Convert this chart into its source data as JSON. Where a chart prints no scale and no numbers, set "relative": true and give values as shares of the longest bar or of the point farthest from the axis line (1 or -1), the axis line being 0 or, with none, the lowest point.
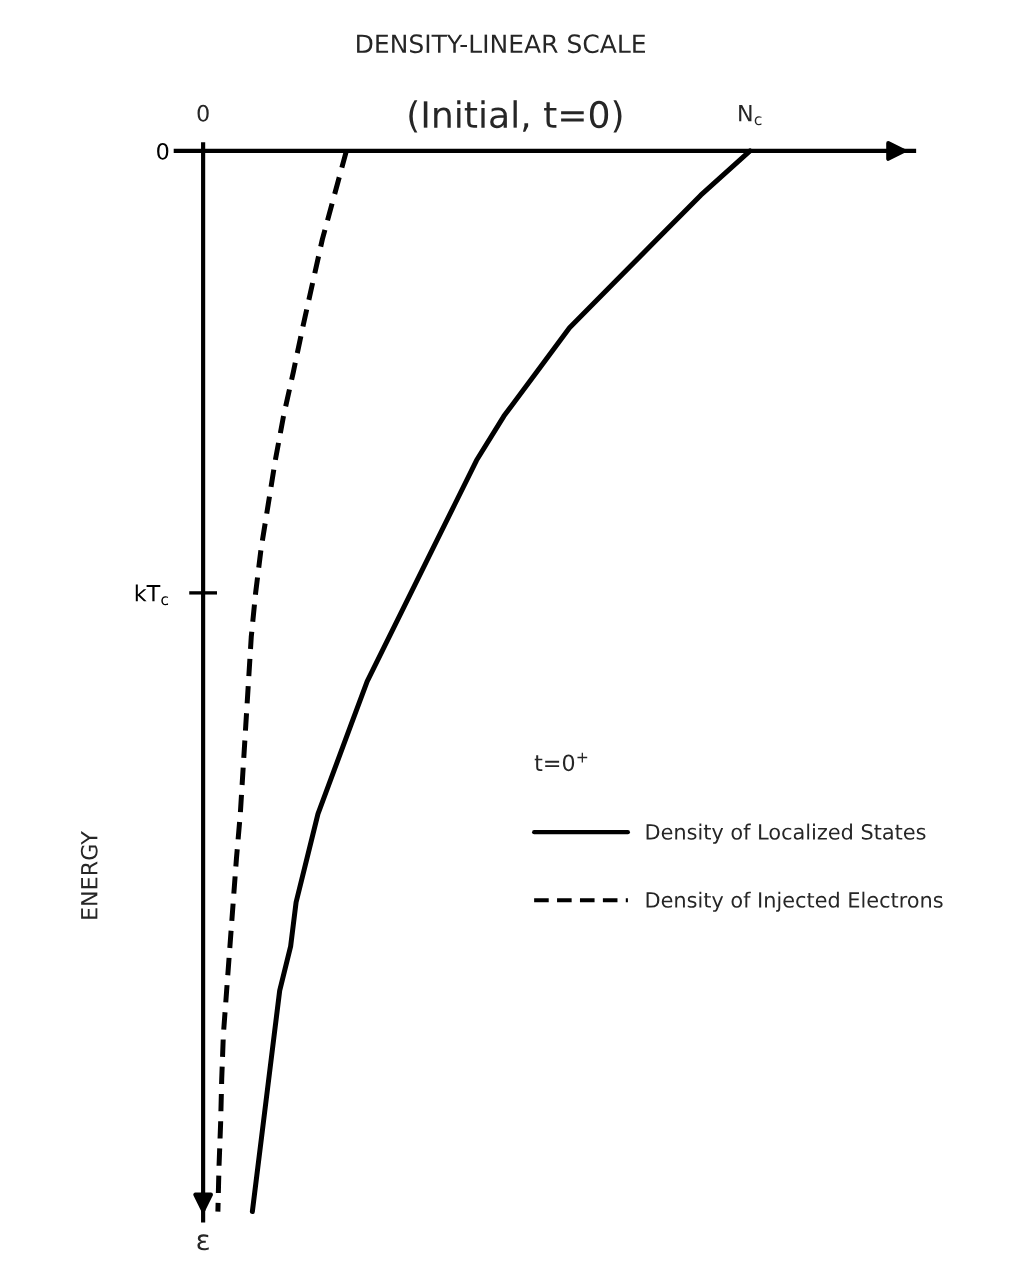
{
  "chart_data": {
    "type": "line",
    "orientation": "horizontal",
    "relative": true,
    "title": "(Initial, t=0)",
    "xlabel": "DENSITY-LINEAR SCALE",
    "ylabel": "ENERGY",
    "legend_title": "t=0$^{+}$",
    "categories": [
      "0",
      null,
      null,
      null,
      null,
      null,
      null,
      null,
      null,
      null,
      "kT$_{c}$",
      null,
      null,
      null,
      null,
      null,
      null,
      null,
      null,
      null,
      null,
      null,
      null,
      null,
      null
    ],
    "annotations": [
      "0",
      "N$_{c}$",
      "ε"
    ],
    "legend": "right",
    "series": [
      {
        "name": "Density of Localized States",
        "color": "#000000",
        "line_style": "solid",
        "values": [
          1.0,
          0.91,
          0.83,
          0.75,
          0.67,
          0.61,
          0.55,
          0.5,
          0.46,
          0.42,
          0.38,
          0.34,
          0.3,
          0.27,
          0.24,
          0.21,
          0.19,
          0.17,
          0.16,
          0.14,
          0.13,
          0.12,
          0.11,
          0.1,
          0.09
        ]
      },
      {
        "name": "Density of Injected Electrons",
        "color": "#000000",
        "line_style": "dashed",
        "values": [
          0.262,
          0.24,
          0.218,
          0.2,
          0.182,
          0.165,
          0.147,
          0.132,
          0.119,
          0.106,
          0.096,
          0.088,
          0.083,
          0.078,
          0.073,
          0.068,
          0.061,
          0.055,
          0.049,
          0.043,
          0.037,
          0.034,
          0.032,
          0.029,
          0.027
        ]
      }
    ]
  }
}
